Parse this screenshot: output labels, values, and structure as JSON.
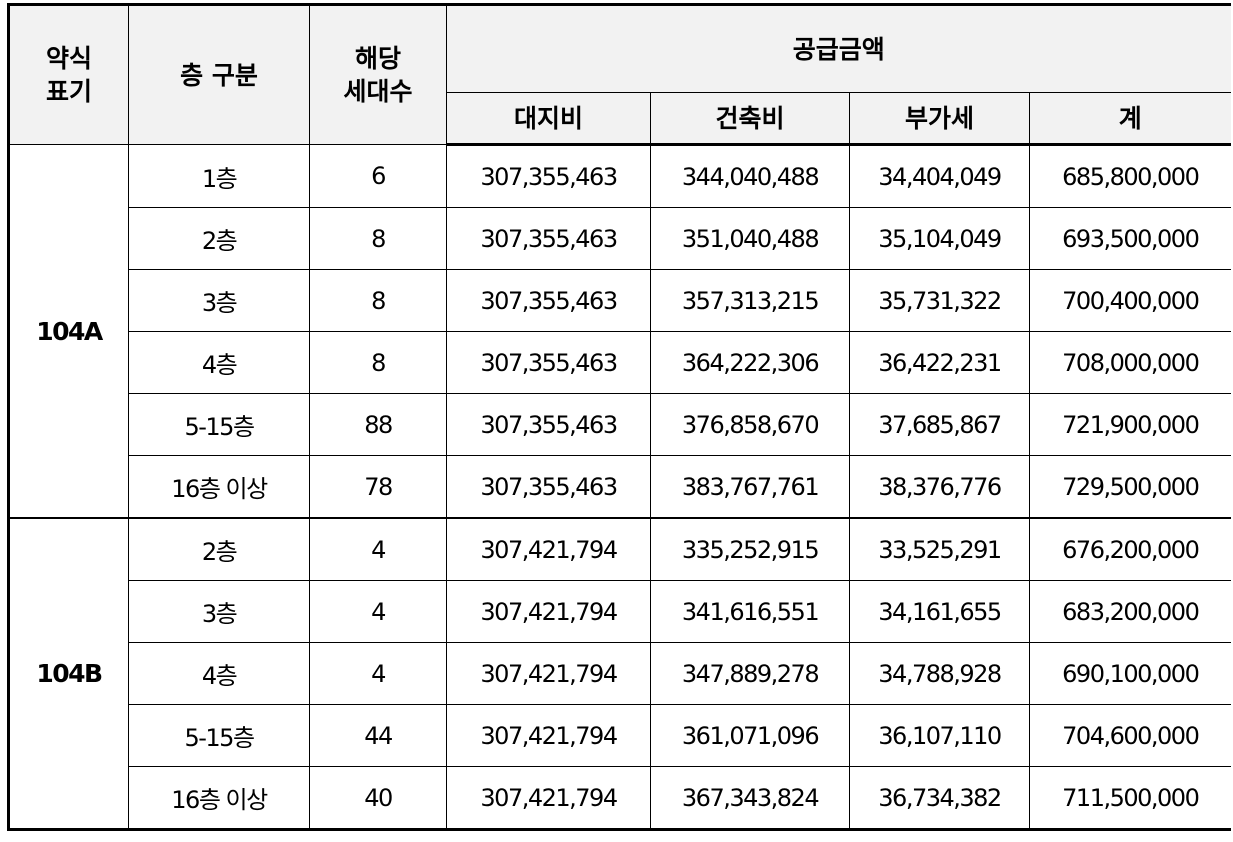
{
  "header": {
    "type_label_line1": "약식",
    "type_label_line2": "표기",
    "floor_label": "층 구분",
    "units_label_line1": "해당",
    "units_label_line2": "세대수",
    "amount_label": "공급금액",
    "land_label": "대지비",
    "building_label": "건축비",
    "vat_label": "부가세",
    "total_label": "계"
  },
  "groups": [
    {
      "type": "104A",
      "rows": [
        {
          "floor": "1층",
          "units": "6",
          "land": "307,355,463",
          "building": "344,040,488",
          "vat": "34,404,049",
          "total": "685,800,000"
        },
        {
          "floor": "2층",
          "units": "8",
          "land": "307,355,463",
          "building": "351,040,488",
          "vat": "35,104,049",
          "total": "693,500,000"
        },
        {
          "floor": "3층",
          "units": "8",
          "land": "307,355,463",
          "building": "357,313,215",
          "vat": "35,731,322",
          "total": "700,400,000"
        },
        {
          "floor": "4층",
          "units": "8",
          "land": "307,355,463",
          "building": "364,222,306",
          "vat": "36,422,231",
          "total": "708,000,000"
        },
        {
          "floor": "5-15층",
          "units": "88",
          "land": "307,355,463",
          "building": "376,858,670",
          "vat": "37,685,867",
          "total": "721,900,000"
        },
        {
          "floor": "16층 이상",
          "units": "78",
          "land": "307,355,463",
          "building": "383,767,761",
          "vat": "38,376,776",
          "total": "729,500,000"
        }
      ]
    },
    {
      "type": "104B",
      "rows": [
        {
          "floor": "2층",
          "units": "4",
          "land": "307,421,794",
          "building": "335,252,915",
          "vat": "33,525,291",
          "total": "676,200,000"
        },
        {
          "floor": "3층",
          "units": "4",
          "land": "307,421,794",
          "building": "341,616,551",
          "vat": "34,161,655",
          "total": "683,200,000"
        },
        {
          "floor": "4층",
          "units": "4",
          "land": "307,421,794",
          "building": "347,889,278",
          "vat": "34,788,928",
          "total": "690,100,000"
        },
        {
          "floor": "5-15층",
          "units": "44",
          "land": "307,421,794",
          "building": "361,071,096",
          "vat": "36,107,110",
          "total": "704,600,000"
        },
        {
          "floor": "16층 이상",
          "units": "40",
          "land": "307,421,794",
          "building": "367,343,824",
          "vat": "36,734,382",
          "total": "711,500,000"
        }
      ]
    }
  ]
}
